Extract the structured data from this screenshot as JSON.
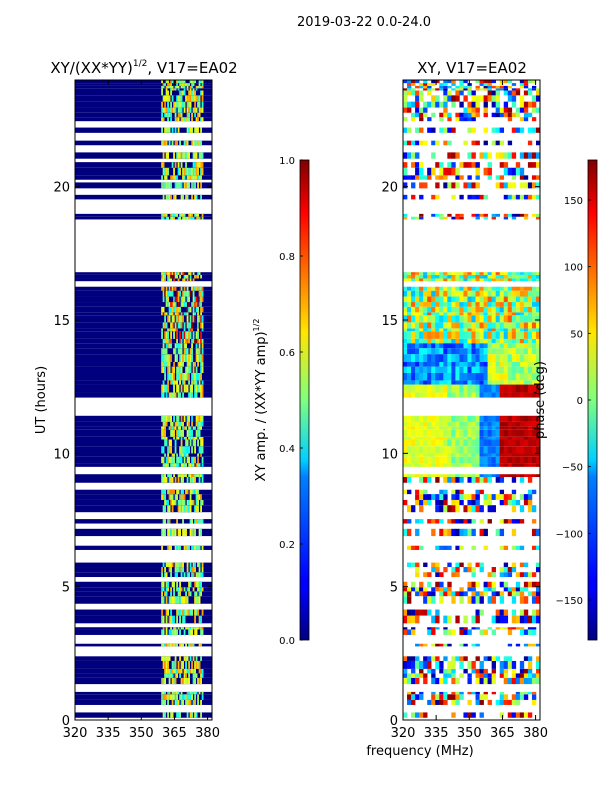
{
  "figure_title": "2019-03-22 0.0-24.0",
  "xlabel": "frequency (MHz)",
  "chart_data": [
    {
      "type": "heatmap",
      "panel": "amplitude",
      "title_main": "XY/(XX*YY)",
      "title_exp": "1/2",
      "title_rest": ", V17=EA02",
      "ylabel": "UT (hours)",
      "xlim": [
        320,
        382
      ],
      "ylim": [
        0,
        24
      ],
      "xticks": [
        320,
        335,
        350,
        365,
        380
      ],
      "yticks": [
        0,
        5,
        10,
        15,
        20
      ],
      "colorbar": {
        "label_main": "XY amp. / (XX*YY amp)",
        "label_exp": "1/2",
        "range": [
          0.0,
          1.0
        ],
        "ticks": [
          "0.0",
          "0.2",
          "0.4",
          "0.6",
          "0.8",
          "1.0"
        ],
        "colormap": "jet"
      },
      "rfi_band_mhz": [
        359,
        378
      ],
      "data_gap_hours": [
        16.8,
        18.5
      ],
      "typical_value_outside_band": 0.0
    },
    {
      "type": "heatmap",
      "panel": "phase",
      "title": "XY, V17=EA02",
      "ylabel": "",
      "xlim": [
        320,
        382
      ],
      "ylim": [
        0,
        24
      ],
      "xticks": [
        320,
        335,
        350,
        365,
        380
      ],
      "yticks": [
        0,
        5,
        10,
        15,
        20
      ],
      "colorbar": {
        "label": "phase (deg)",
        "range": [
          -180,
          180
        ],
        "ticks": [
          "150",
          "100",
          "50",
          "0",
          "−50",
          "−100",
          "−150"
        ],
        "colormap": "jet"
      },
      "data_gap_hours": [
        16.8,
        18.5
      ]
    }
  ],
  "colors": {
    "jet_low": "#00007f",
    "jet_mid": "#7fff7f",
    "jet_high": "#7f0000"
  }
}
